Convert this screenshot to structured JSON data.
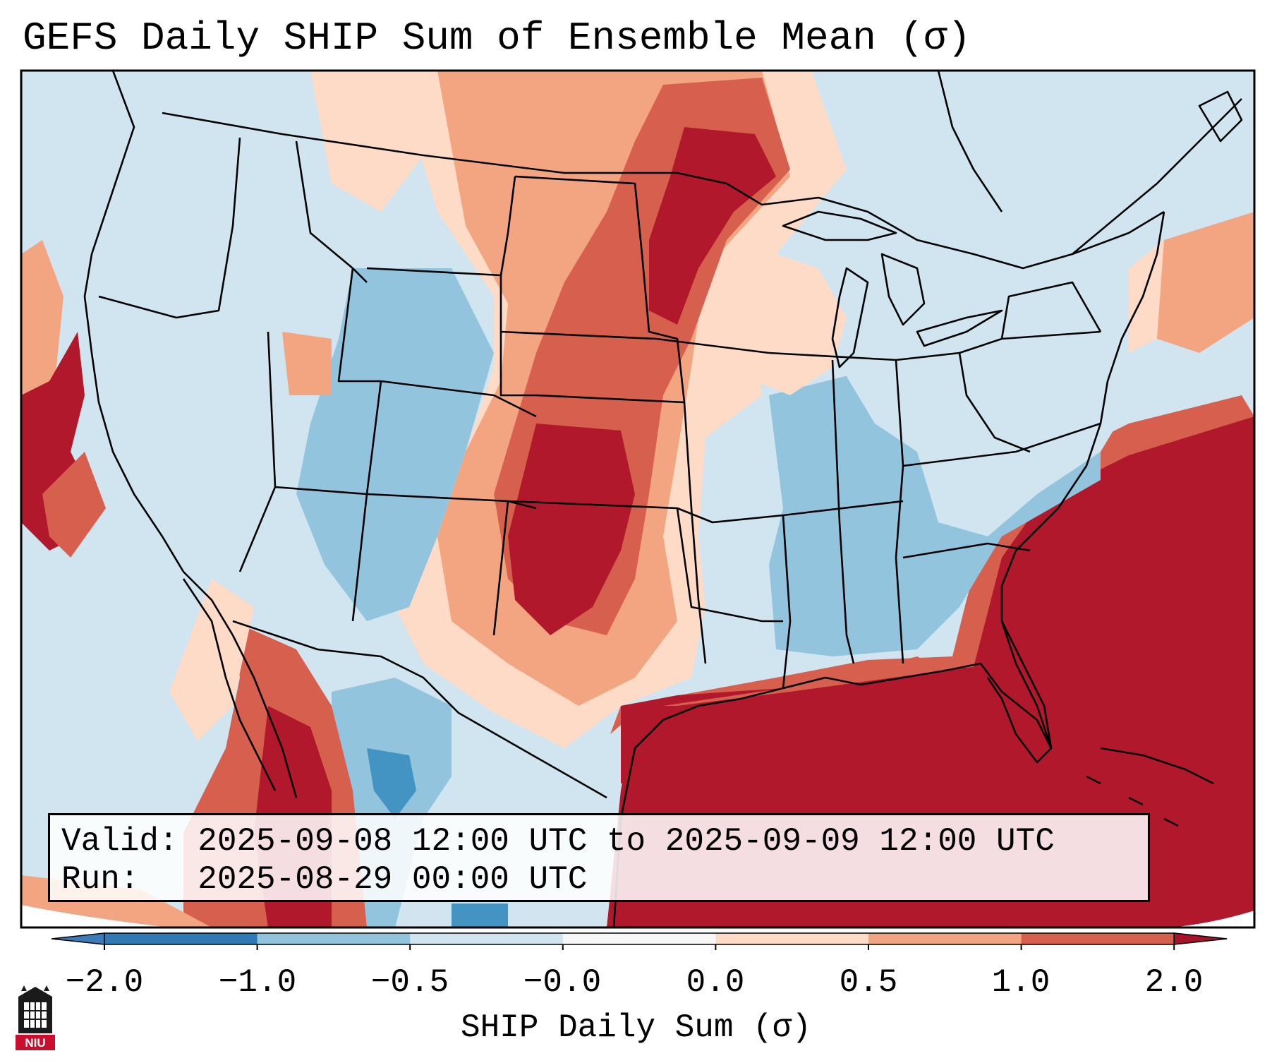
{
  "title": "GEFS Daily SHIP Sum of Ensemble Mean (σ)",
  "info": {
    "valid": "Valid: 2025-09-08 12:00 UTC to 2025-09-09 12:00 UTC",
    "run": "Run:   2025-08-29 00:00 UTC"
  },
  "colorbar": {
    "label": "SHIP Daily Sum (σ)",
    "ticks": [
      "−2.0",
      "−1.0",
      "−0.5",
      "−0.0",
      "0.0",
      "0.5",
      "1.0",
      "2.0"
    ],
    "colors": [
      "#2f79b5",
      "#93c4de",
      "#d1e5f0",
      "#ffffff",
      "#fddbc7",
      "#f3a481",
      "#d6604d",
      "#b2182b"
    ],
    "extend_low": "#3b7cb8",
    "extend_high": "#a7132a"
  },
  "palette": {
    "ocean": "#d1e5f0",
    "land_low": "#d1e5f0",
    "warm_light": "#fddbc7",
    "warm_mid": "#f3a481",
    "warm_strong": "#d6604d",
    "warm_max": "#b2182b",
    "cool_mid": "#93c4de",
    "cool_strong": "#4393c3"
  },
  "logo": {
    "text": "NIU",
    "icon": "niu-building-icon"
  }
}
